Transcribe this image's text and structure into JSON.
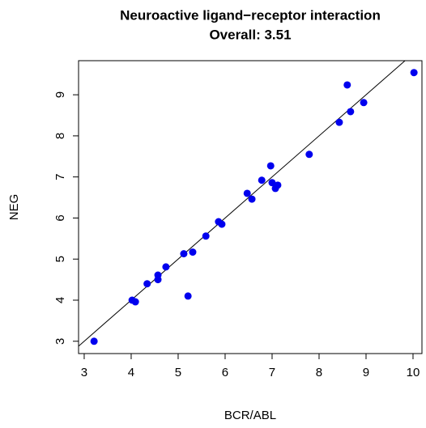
{
  "chart_data": {
    "type": "scatter",
    "title": "Neuroactive ligand−receptor interaction",
    "subtitle": "Overall: 3.51",
    "xlabel": "BCR/ABL",
    "ylabel": "NEG",
    "color": "#0000ee",
    "x": [
      3.21,
      4.02,
      4.09,
      4.34,
      4.57,
      4.57,
      4.74,
      5.12,
      5.21,
      5.31,
      5.59,
      5.86,
      5.93,
      6.47,
      6.57,
      6.78,
      6.97,
      7.0,
      7.07,
      7.12,
      7.79,
      8.43,
      8.6,
      8.67,
      8.95,
      10.02
    ],
    "values": [
      3.0,
      4.0,
      3.96,
      4.4,
      4.5,
      4.61,
      4.81,
      5.13,
      4.1,
      5.17,
      5.56,
      5.91,
      5.85,
      6.6,
      6.46,
      6.92,
      7.27,
      6.86,
      6.72,
      6.8,
      7.55,
      8.33,
      9.24,
      8.59,
      8.81,
      9.54
    ],
    "reference_line": {
      "slope": 1,
      "intercept": 0
    },
    "xlim": [
      2.88,
      10.19
    ],
    "ylim": [
      2.7,
      9.83
    ],
    "xticks": [
      3,
      4,
      5,
      6,
      7,
      8,
      9,
      10
    ],
    "yticks": [
      3,
      4,
      5,
      6,
      7,
      8,
      9
    ]
  }
}
